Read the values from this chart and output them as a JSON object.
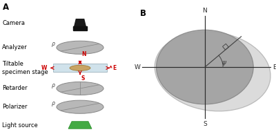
{
  "bg_color": "#ffffff",
  "panel_a_label": "A",
  "panel_b_label": "B",
  "camera_label": "Camera",
  "analyzer_label": "Analyzer",
  "stage_label": "Tiltable\nspecimen stage",
  "retarder_label": "Retarder",
  "polarizer_label": "Polarizer",
  "light_source_label": "Light source",
  "compass_N": "N",
  "compass_S": "S",
  "compass_E": "E",
  "compass_W": "W",
  "psi_label": "ψ",
  "ellipse_color": "#b8b8b8",
  "ellipse_edge": "#888888",
  "ellipse_line_color": "#888888",
  "stage_color": "#c8dde8",
  "stage_edge": "#9ab0bb",
  "brain_color": "#c8a464",
  "brain_edge": "#9a7832",
  "light_color": "#44aa44",
  "light_edge": "#228822",
  "camera_color": "#1a1a1a",
  "arrow_color": "#cc0000",
  "compass_color": "#333333",
  "font_size_labels": 6.0,
  "font_size_panel": 8.5,
  "font_size_compass": 6.5
}
